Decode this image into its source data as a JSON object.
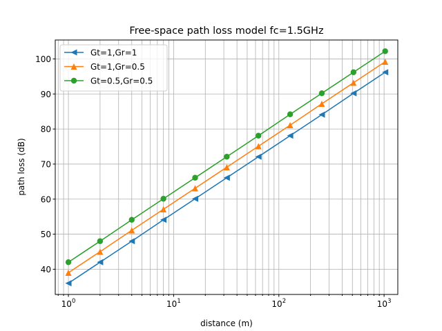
{
  "chart_data": {
    "type": "line",
    "title": "Free-space path loss model   fc=1.5GHz",
    "xlabel": "distance (m)",
    "ylabel": "path loss (dB)",
    "xscale": "log",
    "xlim": [
      0.75,
      1350
    ],
    "ylim": [
      32.8,
      105.4
    ],
    "grid": "both",
    "legend_position": "top-left",
    "x_major_ticks": [
      {
        "value": 1,
        "base": "10",
        "exp": "0"
      },
      {
        "value": 10,
        "base": "10",
        "exp": "1"
      },
      {
        "value": 100,
        "base": "10",
        "exp": "2"
      },
      {
        "value": 1000,
        "base": "10",
        "exp": "3"
      }
    ],
    "y_ticks": [
      40,
      50,
      60,
      70,
      80,
      90,
      100
    ],
    "x": [
      1,
      2,
      4,
      8,
      16,
      32,
      64,
      128,
      256,
      512,
      1024
    ],
    "series": [
      {
        "name": "Gt=1,Gr=1",
        "color": "#1f77b4",
        "marker": "triangle-left",
        "values": [
          36.0,
          42.0,
          48.0,
          54.1,
          60.1,
          66.1,
          72.1,
          78.1,
          84.1,
          90.2,
          96.2
        ]
      },
      {
        "name": "Gt=1,Gr=0.5",
        "color": "#ff7f0e",
        "marker": "triangle-up",
        "values": [
          39.0,
          45.0,
          51.1,
          57.1,
          63.1,
          69.1,
          75.1,
          81.1,
          87.2,
          93.2,
          99.2
        ]
      },
      {
        "name": "Gt=0.5,Gr=0.5",
        "color": "#2ca02c",
        "marker": "circle",
        "values": [
          42.0,
          48.0,
          54.1,
          60.1,
          66.1,
          72.1,
          78.1,
          84.2,
          90.2,
          96.2,
          102.2
        ]
      }
    ]
  }
}
